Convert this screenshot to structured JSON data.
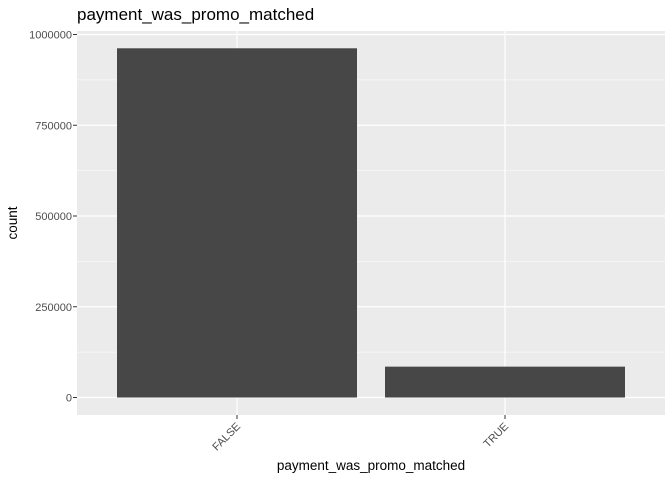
{
  "chart_data": {
    "type": "bar",
    "title": "payment_was_promo_matched",
    "xlabel": "payment_was_promo_matched",
    "ylabel": "count",
    "categories": [
      "FALSE",
      "TRUE"
    ],
    "values": [
      962000,
      85000
    ],
    "ylim": [
      0,
      1000000
    ],
    "yticks": [
      0,
      250000,
      500000,
      750000,
      1000000
    ],
    "ytick_labels": [
      "0",
      "250000",
      "500000",
      "750000",
      "1000000"
    ],
    "grid": true,
    "legend": "none",
    "colors": {
      "panel": "#ebebeb",
      "grid": "#ffffff",
      "bar": "#474747",
      "tick": "#4d4d4d"
    }
  }
}
